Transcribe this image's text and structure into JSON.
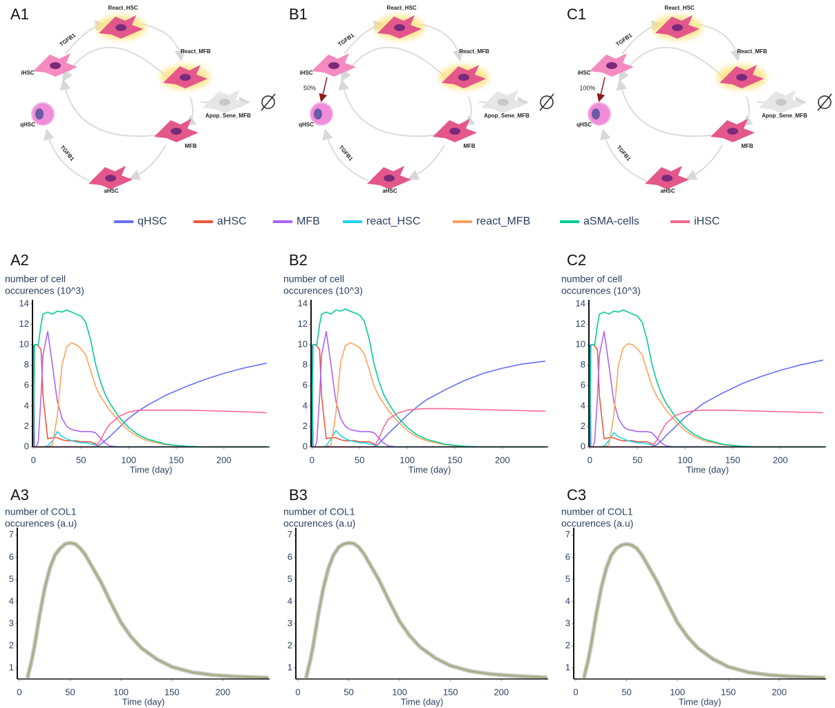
{
  "diagrams": [
    {
      "label": "A1",
      "nodes": [
        "React_HSC",
        "React_MFB",
        "iHSC",
        "qHSC",
        "Apop_Sene_MFB",
        "MFB",
        "aHSC"
      ],
      "edge_labels": [
        "TGFB1",
        "TGFB1"
      ]
    },
    {
      "label": "B1",
      "nodes": [
        "React_HSC",
        "React_MFB",
        "iHSC",
        "qHSC",
        "Apop_Sene_MFB",
        "MFB",
        "aHSC"
      ],
      "edge_labels": [
        "TGFB1",
        "TGFB1"
      ],
      "percent": "50%"
    },
    {
      "label": "C1",
      "nodes": [
        "React_HSC",
        "React_MFB",
        "iHSC",
        "qHSC",
        "Apop_Sene_MFB",
        "MFB",
        "aHSC"
      ],
      "edge_labels": [
        "TGFB1",
        "TGFB1"
      ],
      "percent": "100%"
    }
  ],
  "chart_data": [
    {
      "type": "line",
      "label": "A2",
      "ylabel": [
        "number of cell",
        "occurences (10^3)"
      ],
      "xlabel": "Time (day)",
      "xlim": [
        -1,
        248
      ],
      "ylim": [
        0,
        14
      ],
      "xticks": [
        0,
        50,
        100,
        150,
        200
      ],
      "yticks": [
        0,
        2,
        4,
        6,
        8,
        10,
        12,
        14
      ],
      "x": [
        0,
        1,
        3,
        5,
        8,
        10,
        15,
        20,
        25,
        30,
        35,
        40,
        45,
        50,
        55,
        60,
        65,
        70,
        75,
        80,
        90,
        100,
        110,
        120,
        140,
        160,
        180,
        200,
        220,
        245
      ],
      "series": [
        {
          "name": "qHSC",
          "color": "#636efa",
          "values": [
            10,
            0,
            0,
            0,
            0,
            0,
            0,
            0,
            0,
            0,
            0,
            0,
            0,
            0,
            0,
            0,
            0,
            0.2,
            0.6,
            1.0,
            1.9,
            2.8,
            3.5,
            4.1,
            5.1,
            5.9,
            6.6,
            7.2,
            7.7,
            8.2
          ]
        },
        {
          "name": "aHSC",
          "color": "#ef553b",
          "values": [
            0,
            10,
            10,
            9.9,
            9.5,
            5,
            0.8,
            0.9,
            0.9,
            0.7,
            0.6,
            0.6,
            0.6,
            0.5,
            0.5,
            0.5,
            0.3,
            0,
            0,
            0,
            0,
            0,
            0,
            0,
            0,
            0,
            0,
            0,
            0,
            0
          ]
        },
        {
          "name": "MFB",
          "color": "#ab63fa",
          "values": [
            0,
            0,
            0,
            0.5,
            5,
            9,
            11.3,
            8,
            4.5,
            2.8,
            2,
            1.7,
            1.6,
            1.5,
            1.5,
            1.5,
            1.4,
            0.9,
            0.4,
            0.1,
            0,
            0,
            0,
            0,
            0,
            0,
            0,
            0,
            0,
            0
          ]
        },
        {
          "name": "react_HSC",
          "color": "#19d3f3",
          "values": [
            0,
            0,
            0,
            0,
            0,
            0,
            0.1,
            0.6,
            1.5,
            1,
            0.8,
            0.6,
            0.5,
            0.4,
            0.4,
            0.3,
            0.2,
            0,
            0,
            0,
            0,
            0,
            0,
            0,
            0,
            0,
            0,
            0,
            0,
            0
          ]
        },
        {
          "name": "react_MFB",
          "color": "#ffa15a",
          "values": [
            0,
            0,
            0,
            0,
            0,
            0,
            0,
            0.2,
            3,
            8,
            9.8,
            10.2,
            10,
            9.6,
            9,
            7.5,
            6,
            5,
            4.3,
            3.6,
            2.5,
            1.6,
            1,
            0.6,
            0.2,
            0.05,
            0,
            0,
            0,
            0
          ]
        },
        {
          "name": "aSMA-cells",
          "color": "#00cc96",
          "values": [
            0,
            10,
            10,
            10,
            12,
            13,
            13.2,
            13,
            13.3,
            13.2,
            13.4,
            13.2,
            13,
            12.8,
            12.2,
            10.5,
            8.2,
            6.5,
            5.2,
            4.3,
            2.9,
            1.9,
            1.2,
            0.75,
            0.25,
            0.07,
            0,
            0,
            0,
            0
          ]
        },
        {
          "name": "iHSC",
          "color": "#ff6692",
          "values": [
            0,
            0,
            0,
            0,
            0,
            0,
            0,
            0,
            0,
            0,
            0,
            0,
            0,
            0,
            0,
            0,
            0,
            0.6,
            1.5,
            2.2,
            3,
            3.4,
            3.6,
            3.6,
            3.6,
            3.6,
            3.55,
            3.5,
            3.45,
            3.35
          ]
        }
      ]
    },
    {
      "type": "line",
      "label": "B2",
      "ylabel": [
        "number of cell",
        "occurences (10^3)"
      ],
      "xlabel": "Time (day)",
      "xlim": [
        -1,
        248
      ],
      "ylim": [
        0,
        14
      ],
      "xticks": [
        0,
        50,
        100,
        150,
        200
      ],
      "yticks": [
        0,
        2,
        4,
        6,
        8,
        10,
        12,
        14
      ],
      "x": [
        0,
        1,
        3,
        5,
        8,
        10,
        15,
        20,
        25,
        30,
        35,
        40,
        45,
        50,
        55,
        60,
        65,
        70,
        75,
        80,
        90,
        100,
        110,
        120,
        140,
        160,
        180,
        200,
        220,
        245
      ],
      "series": [
        {
          "values": [
            10,
            0,
            0,
            0,
            0,
            0,
            0,
            0,
            0,
            0,
            0,
            0,
            0,
            0,
            0,
            0,
            0,
            0.3,
            0.8,
            1.3,
            2.2,
            3.1,
            3.9,
            4.6,
            5.6,
            6.5,
            7.2,
            7.7,
            8.1,
            8.4
          ]
        },
        {
          "values": [
            0,
            10,
            10,
            9.9,
            9.5,
            5,
            0.8,
            0.9,
            0.9,
            0.7,
            0.6,
            0.6,
            0.6,
            0.5,
            0.5,
            0.5,
            0.3,
            0,
            0,
            0,
            0,
            0,
            0,
            0,
            0,
            0,
            0,
            0,
            0,
            0
          ]
        },
        {
          "values": [
            0,
            0,
            0,
            0.5,
            5,
            9,
            11.3,
            8,
            4.5,
            2.8,
            2,
            1.7,
            1.6,
            1.5,
            1.5,
            1.5,
            1.4,
            0.9,
            0.4,
            0.1,
            0,
            0,
            0,
            0,
            0,
            0,
            0,
            0,
            0,
            0
          ]
        },
        {
          "values": [
            0,
            0,
            0,
            0,
            0,
            0,
            0.1,
            0.8,
            1.6,
            1.1,
            0.8,
            0.6,
            0.5,
            0.4,
            0.4,
            0.3,
            0.2,
            0,
            0,
            0,
            0,
            0,
            0,
            0,
            0,
            0,
            0,
            0,
            0,
            0
          ]
        },
        {
          "values": [
            0,
            0,
            0,
            0,
            0,
            0,
            0,
            0.2,
            3.2,
            8.3,
            9.9,
            10.2,
            10,
            9.7,
            9.1,
            7.6,
            6,
            5,
            4.3,
            3.6,
            2.5,
            1.6,
            1,
            0.6,
            0.2,
            0.05,
            0,
            0,
            0,
            0
          ]
        },
        {
          "values": [
            0,
            10,
            10,
            10,
            12,
            13,
            13.2,
            13,
            13.4,
            13.3,
            13.5,
            13.3,
            13.1,
            12.9,
            12.3,
            10.6,
            8.2,
            6.5,
            5.2,
            4.3,
            2.9,
            1.9,
            1.2,
            0.75,
            0.25,
            0.07,
            0,
            0,
            0,
            0
          ]
        },
        {
          "values": [
            0,
            0,
            0,
            0,
            0,
            0,
            0,
            0,
            0,
            0,
            0,
            0,
            0,
            0,
            0,
            0,
            0,
            0.8,
            1.9,
            2.7,
            3.3,
            3.6,
            3.7,
            3.75,
            3.75,
            3.7,
            3.65,
            3.6,
            3.55,
            3.5
          ]
        }
      ]
    },
    {
      "type": "line",
      "label": "C2",
      "ylabel": [
        "number of cell",
        "occurences (10^3)"
      ],
      "xlabel": "Time (day)",
      "xlim": [
        -1,
        248
      ],
      "ylim": [
        0,
        14
      ],
      "xticks": [
        0,
        50,
        100,
        150,
        200
      ],
      "yticks": [
        0,
        2,
        4,
        6,
        8,
        10,
        12,
        14
      ],
      "x": [
        0,
        1,
        3,
        5,
        8,
        10,
        15,
        20,
        25,
        30,
        35,
        40,
        45,
        50,
        55,
        60,
        65,
        70,
        75,
        80,
        90,
        100,
        110,
        120,
        140,
        160,
        180,
        200,
        220,
        245
      ],
      "series": [
        {
          "values": [
            10,
            0,
            0,
            0,
            0,
            0,
            0,
            0,
            0,
            0,
            0,
            0,
            0,
            0,
            0,
            0,
            0,
            0.2,
            0.6,
            1.1,
            2.0,
            2.9,
            3.6,
            4.3,
            5.3,
            6.2,
            6.9,
            7.5,
            8.0,
            8.5
          ]
        },
        {
          "values": [
            0,
            10,
            10,
            9.9,
            9.5,
            5,
            0.8,
            0.9,
            0.9,
            0.7,
            0.6,
            0.6,
            0.6,
            0.5,
            0.5,
            0.5,
            0.3,
            0,
            0,
            0,
            0,
            0,
            0,
            0,
            0,
            0,
            0,
            0,
            0,
            0
          ]
        },
        {
          "values": [
            0,
            0,
            0,
            0.5,
            5,
            9,
            11.3,
            8,
            4.5,
            2.8,
            2,
            1.7,
            1.6,
            1.5,
            1.5,
            1.5,
            1.4,
            0.9,
            0.4,
            0.1,
            0,
            0,
            0,
            0,
            0,
            0,
            0,
            0,
            0,
            0
          ]
        },
        {
          "values": [
            0,
            0,
            0,
            0,
            0,
            0,
            0.1,
            0.6,
            1.4,
            1,
            0.8,
            0.6,
            0.5,
            0.4,
            0.4,
            0.3,
            0.2,
            0,
            0,
            0,
            0,
            0,
            0,
            0,
            0,
            0,
            0,
            0,
            0,
            0
          ]
        },
        {
          "values": [
            0,
            0,
            0,
            0,
            0,
            0,
            0,
            0.2,
            3,
            8,
            9.7,
            10.1,
            10,
            9.6,
            9,
            7.5,
            6,
            5,
            4.3,
            3.6,
            2.5,
            1.6,
            1,
            0.6,
            0.2,
            0.05,
            0,
            0,
            0,
            0
          ]
        },
        {
          "values": [
            0,
            10,
            10,
            10,
            12,
            13,
            13.2,
            13,
            13.3,
            13.2,
            13.4,
            13.2,
            13,
            12.8,
            12.2,
            10.5,
            8.2,
            6.5,
            5.2,
            4.3,
            2.9,
            1.9,
            1.2,
            0.75,
            0.25,
            0.07,
            0,
            0,
            0,
            0
          ]
        },
        {
          "values": [
            0,
            0,
            0,
            0,
            0,
            0,
            0,
            0,
            0,
            0,
            0,
            0,
            0,
            0,
            0,
            0,
            0,
            0.6,
            1.5,
            2.3,
            3.1,
            3.4,
            3.55,
            3.6,
            3.6,
            3.55,
            3.5,
            3.45,
            3.4,
            3.35
          ]
        }
      ]
    },
    {
      "type": "line",
      "label": "A3",
      "ylabel": [
        "number of COL1",
        "occurences (a.u)"
      ],
      "xlabel": "Time (day)",
      "xlim": [
        -2,
        246
      ],
      "ylim": [
        0.5,
        7.15
      ],
      "xticks": [
        0,
        50,
        100,
        150,
        200
      ],
      "yticks": [
        1,
        2,
        3,
        4,
        5,
        6,
        7
      ],
      "x": [
        8,
        12,
        15,
        20,
        25,
        30,
        35,
        40,
        45,
        50,
        55,
        60,
        65,
        70,
        80,
        90,
        100,
        110,
        120,
        135,
        150,
        170,
        190,
        210,
        230,
        245
      ],
      "series": [
        {
          "color": "#a3a36b",
          "values": [
            0.55,
            1.3,
            2,
            3.4,
            4.6,
            5.5,
            6.1,
            6.4,
            6.6,
            6.65,
            6.6,
            6.4,
            6.1,
            5.7,
            4.9,
            3.95,
            3.05,
            2.4,
            1.9,
            1.4,
            1.05,
            0.8,
            0.68,
            0.62,
            0.58,
            0.56
          ]
        }
      ]
    },
    {
      "type": "line",
      "label": "B3",
      "ylabel": [
        "number of COL1",
        "occurences (a.u)"
      ],
      "xlabel": "Time (day)",
      "xlim": [
        -2,
        246
      ],
      "ylim": [
        0.5,
        7.15
      ],
      "xticks": [
        0,
        50,
        100,
        150,
        200
      ],
      "yticks": [
        1,
        2,
        3,
        4,
        5,
        6,
        7
      ],
      "x": [
        8,
        12,
        15,
        20,
        25,
        30,
        35,
        40,
        45,
        50,
        55,
        60,
        65,
        70,
        80,
        90,
        100,
        110,
        120,
        135,
        150,
        170,
        190,
        210,
        230,
        245
      ],
      "series": [
        {
          "color": "#a3a36b",
          "values": [
            0.55,
            1.3,
            2,
            3.4,
            4.6,
            5.5,
            6.1,
            6.45,
            6.6,
            6.65,
            6.62,
            6.45,
            6.15,
            5.75,
            4.95,
            4.0,
            3.1,
            2.45,
            1.95,
            1.45,
            1.1,
            0.85,
            0.72,
            0.65,
            0.6,
            0.57
          ]
        }
      ]
    },
    {
      "type": "line",
      "label": "C3",
      "ylabel": [
        "number of COL1",
        "occurences (a.u)"
      ],
      "xlabel": "Time (day)",
      "xlim": [
        -2,
        246
      ],
      "ylim": [
        0.5,
        7.15
      ],
      "xticks": [
        0,
        50,
        100,
        150,
        200
      ],
      "yticks": [
        1,
        2,
        3,
        4,
        5,
        6,
        7
      ],
      "x": [
        8,
        12,
        15,
        20,
        25,
        30,
        35,
        40,
        45,
        50,
        55,
        60,
        65,
        70,
        80,
        90,
        100,
        110,
        120,
        135,
        150,
        170,
        190,
        210,
        230,
        245
      ],
      "series": [
        {
          "color": "#a3a36b",
          "values": [
            0.55,
            1.3,
            2,
            3.4,
            4.6,
            5.5,
            6.1,
            6.4,
            6.55,
            6.6,
            6.55,
            6.4,
            6.1,
            5.7,
            4.9,
            3.95,
            3.05,
            2.4,
            1.9,
            1.4,
            1.05,
            0.8,
            0.68,
            0.62,
            0.58,
            0.56
          ]
        }
      ]
    }
  ]
}
